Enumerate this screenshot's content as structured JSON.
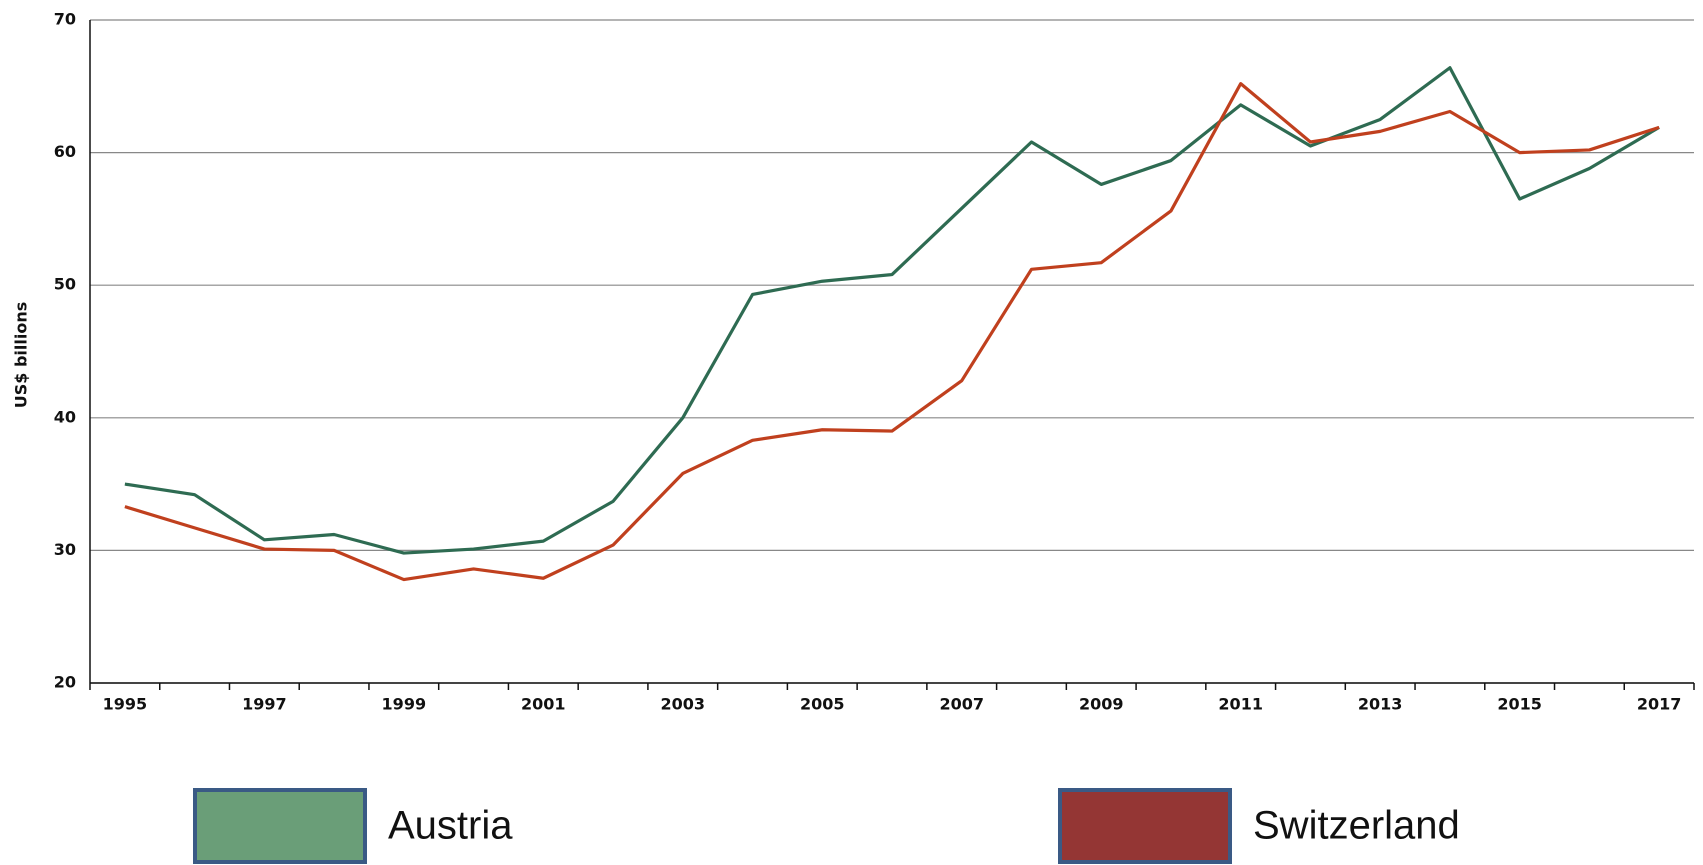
{
  "chart_data": {
    "type": "line",
    "y_label": "US$ billions",
    "categories": [
      "1995",
      null,
      "1997",
      null,
      "1999",
      null,
      "2001",
      null,
      "2003",
      null,
      "2005",
      null,
      "2007",
      null,
      "2009",
      null,
      "2011",
      null,
      "2013",
      null,
      "2015",
      null,
      "2017"
    ],
    "series": [
      {
        "name": "Austria",
        "color": "#2e6b52",
        "swatch_color": "#6a9e78",
        "values": [
          35.0,
          34.2,
          30.8,
          31.2,
          29.8,
          30.1,
          30.7,
          33.7,
          40.0,
          49.3,
          50.3,
          50.8,
          55.8,
          60.8,
          57.6,
          59.4,
          63.6,
          60.5,
          62.5,
          66.4,
          56.5,
          58.8,
          61.9
        ]
      },
      {
        "name": "Switzerland",
        "color": "#c0401e",
        "swatch_color": "#943634",
        "values": [
          33.3,
          31.7,
          30.1,
          30.0,
          27.8,
          28.6,
          27.9,
          30.4,
          35.8,
          38.3,
          39.1,
          39.0,
          42.8,
          51.2,
          51.7,
          55.6,
          65.2,
          60.8,
          61.6,
          63.1,
          60.0,
          60.2,
          61.9
        ]
      }
    ],
    "ylim": [
      20,
      70
    ],
    "yticks": [
      20,
      30,
      40,
      50,
      60,
      70
    ],
    "grid": true
  }
}
